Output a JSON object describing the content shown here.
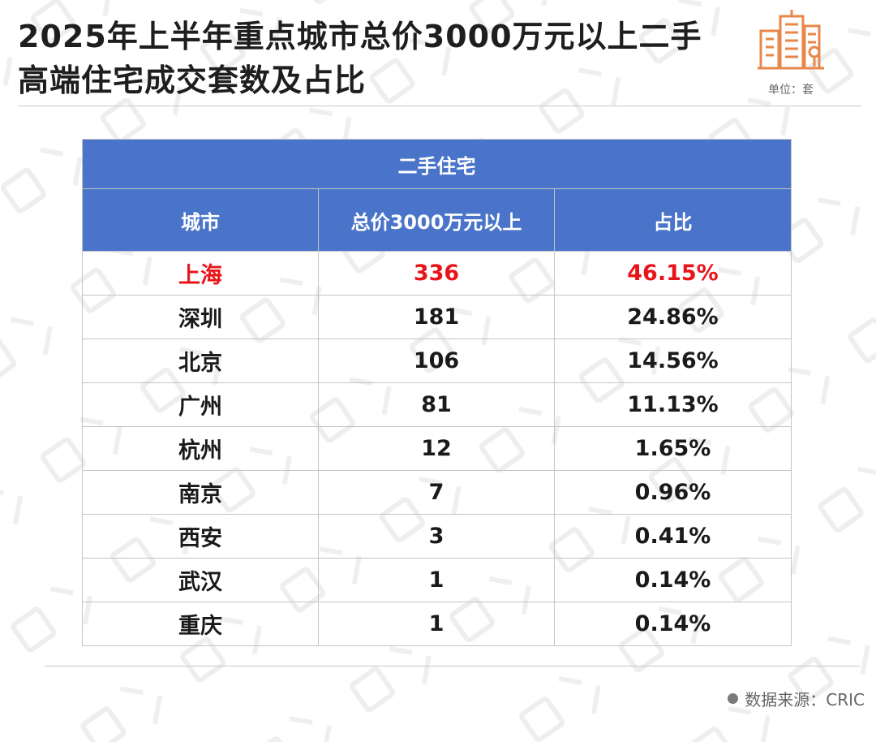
{
  "title": "2025年上半年重点城市总价3000万元以上二手高端住宅成交套数及占比",
  "unit": "单位：套",
  "source": "数据来源：CRIC",
  "colors": {
    "header": "#4a74c9",
    "highlight": "#e8141a",
    "logo": "#e8874a"
  },
  "icons": {
    "logo": "building-logo-icon",
    "source": "bullet-dot-icon"
  },
  "table": {
    "group_header": "二手住宅",
    "columns": [
      "城市",
      "总价3000万元以上",
      "占比"
    ],
    "rows": [
      [
        "上海",
        "336",
        "46.15%"
      ],
      [
        "深圳",
        "181",
        "24.86%"
      ],
      [
        "北京",
        "106",
        "14.56%"
      ],
      [
        "广州",
        "81",
        "11.13%"
      ],
      [
        "杭州",
        "12",
        "1.65%"
      ],
      [
        "南京",
        "7",
        "0.96%"
      ],
      [
        "西安",
        "3",
        "0.41%"
      ],
      [
        "武汉",
        "1",
        "0.14%"
      ],
      [
        "重庆",
        "1",
        "0.14%"
      ]
    ],
    "highlight_row": 0
  },
  "chart_data": {
    "type": "table",
    "title": "2025年上半年重点城市总价3000万元以上二手高端住宅成交套数及占比",
    "unit": "单位：套",
    "group_header": "二手住宅",
    "columns": [
      "城市",
      "总价3000万元以上",
      "占比"
    ],
    "categories": [
      "上海",
      "深圳",
      "北京",
      "广州",
      "杭州",
      "南京",
      "西安",
      "武汉",
      "重庆"
    ],
    "values": [
      336,
      181,
      106,
      81,
      12,
      7,
      3,
      1,
      1
    ],
    "shares": [
      "46.15%",
      "24.86%",
      "14.56%",
      "11.13%",
      "1.65%",
      "0.96%",
      "0.41%",
      "0.14%",
      "0.14%"
    ],
    "source": "数据来源：CRIC"
  }
}
